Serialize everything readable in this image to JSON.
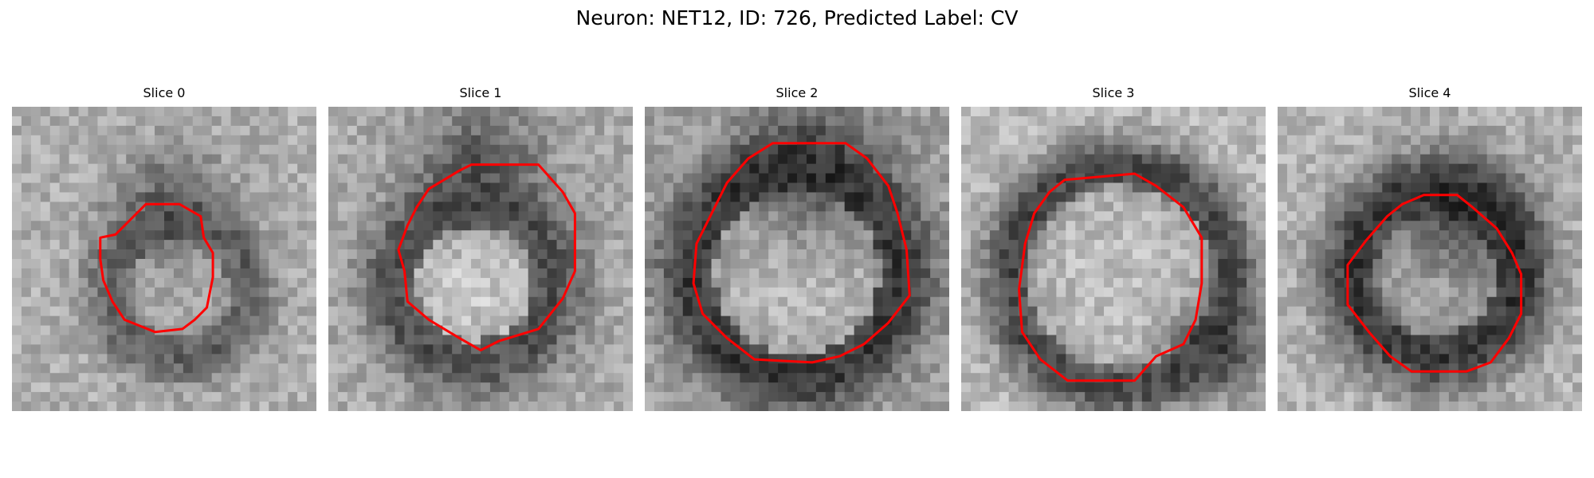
{
  "figure": {
    "title": "Neuron: NET12, ID: 726, Predicted Label: CV"
  },
  "colors": {
    "contour": "#ff0000",
    "background": "#ffffff"
  },
  "panels": [
    {
      "title": "Slice 0"
    },
    {
      "title": "Slice 1"
    },
    {
      "title": "Slice 2"
    },
    {
      "title": "Slice 3"
    },
    {
      "title": "Slice 4"
    }
  ]
}
